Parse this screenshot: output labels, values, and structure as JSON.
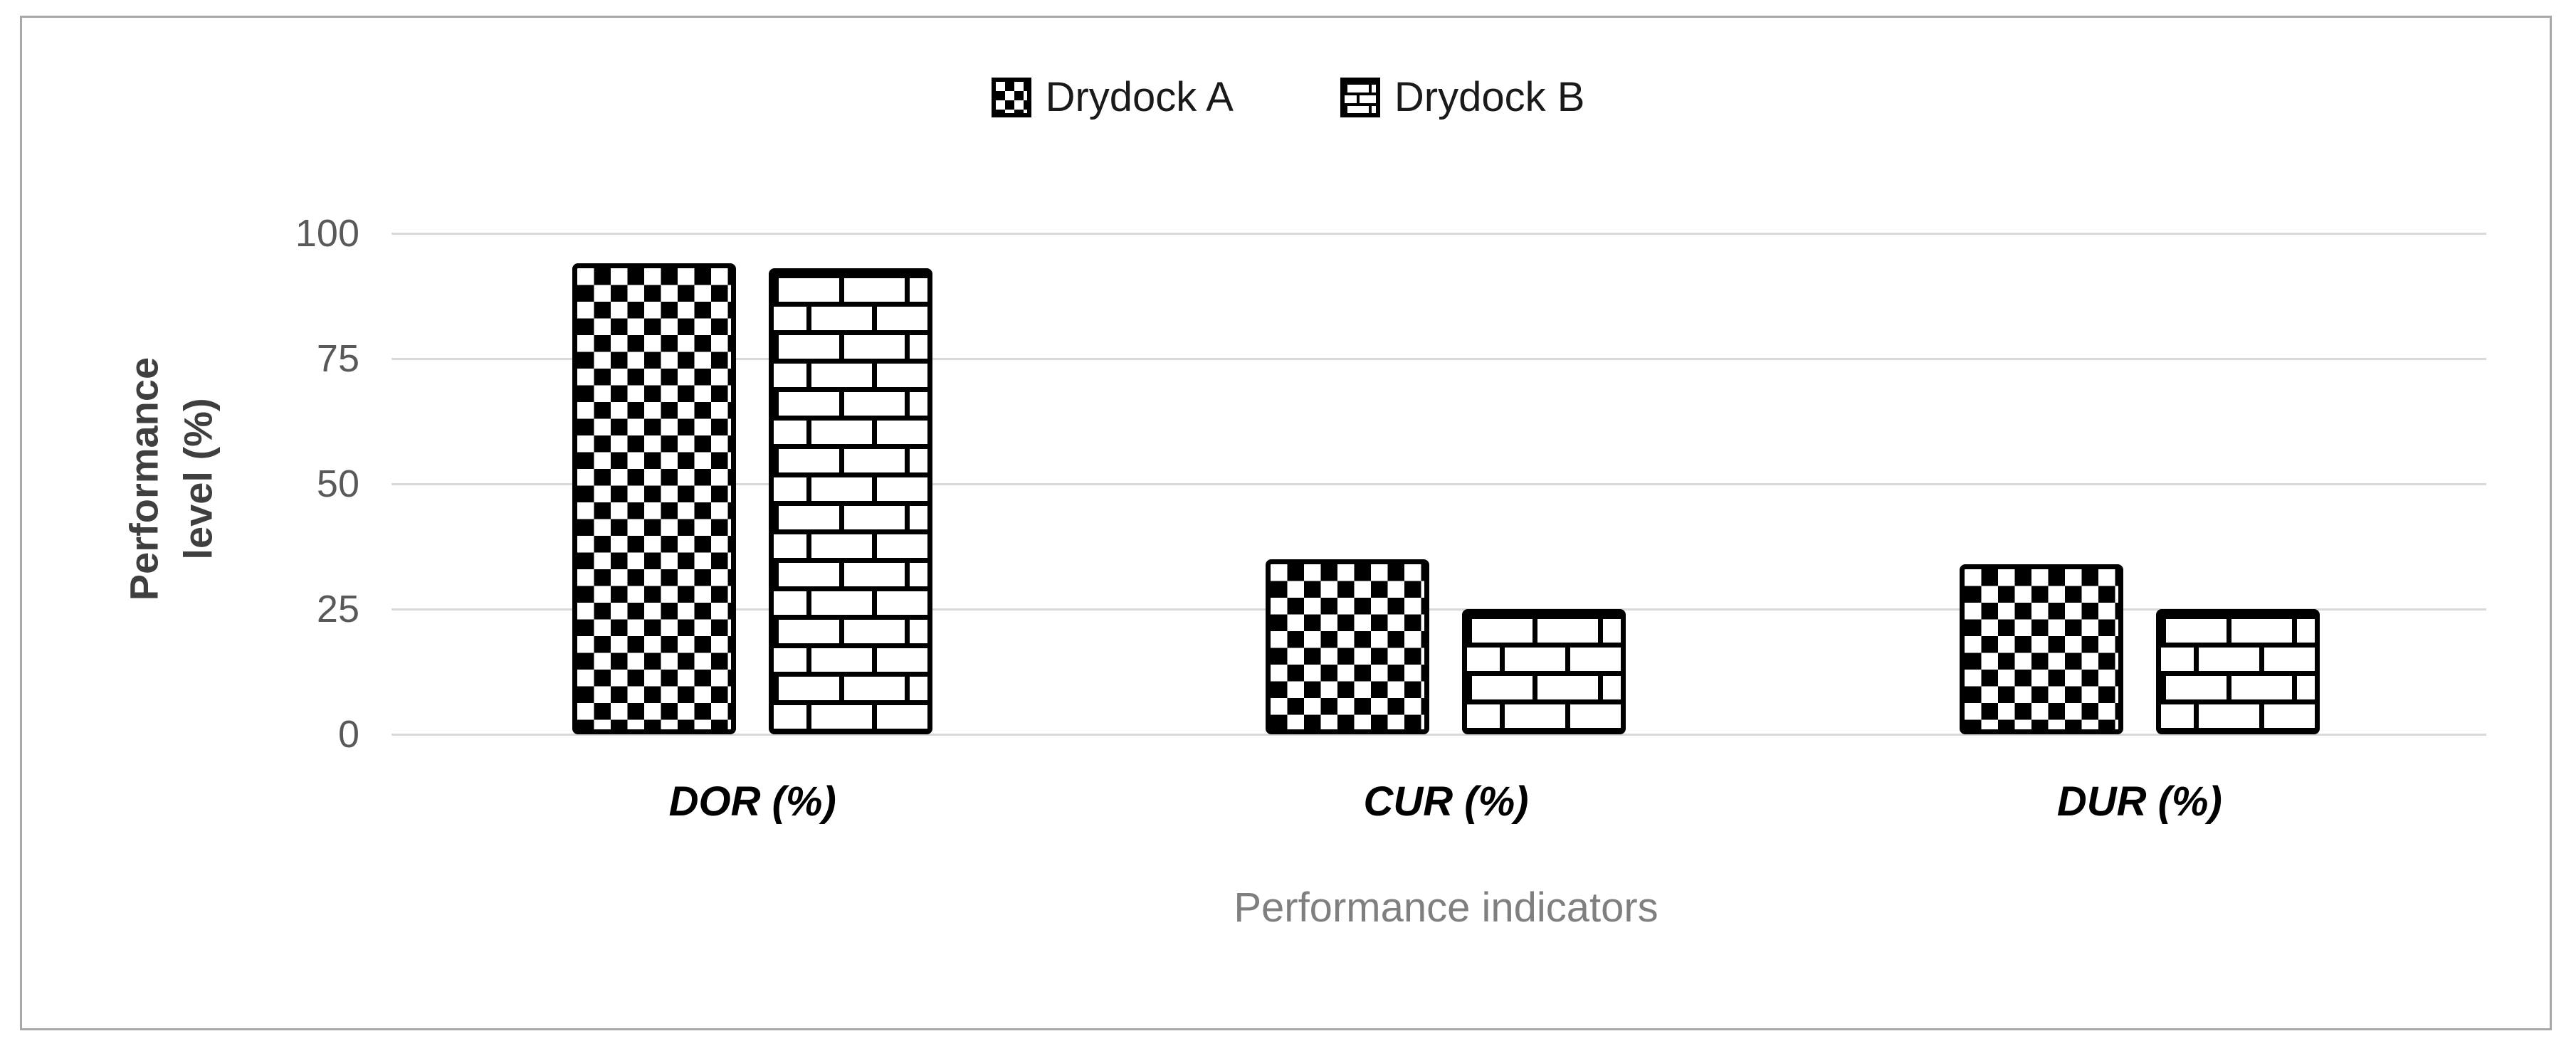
{
  "legend": {
    "items": [
      {
        "label": "Drydock A",
        "pattern": "checker",
        "marker": "checkerboard-square-icon"
      },
      {
        "label": "Drydock B",
        "pattern": "brick",
        "marker": "brick-square-icon"
      }
    ],
    "position": "top-center"
  },
  "chart_data": {
    "type": "bar",
    "categories": [
      "DOR (%)",
      "CUR (%)",
      "DUR (%)"
    ],
    "series": [
      {
        "name": "Drydock A",
        "pattern": "checker",
        "values": [
          94,
          35,
          34
        ]
      },
      {
        "name": "Drydock B",
        "pattern": "brick",
        "values": [
          93,
          25,
          25
        ]
      }
    ],
    "title": "",
    "xlabel": "Performance indicators",
    "ylabel": "Performance level (%)",
    "ylabel_lines": [
      "Performance",
      "level (%)"
    ],
    "yticks": [
      0,
      25,
      50,
      75,
      100
    ],
    "ylim": [
      0,
      100
    ],
    "grid": true,
    "legend_position": "top"
  },
  "colors": {
    "bar_fill": "#000000",
    "bar_background": "#ffffff",
    "bar_border": "#000000",
    "gridline": "#d9d9d9",
    "tick_label": "#595959",
    "y_axis_title": "#3f3f3f",
    "x_axis_title": "#7f7f7f",
    "category_label": "#000000",
    "legend_text": "#1a1a1a",
    "frame_border": "#a8a8a8",
    "background": "#ffffff"
  }
}
